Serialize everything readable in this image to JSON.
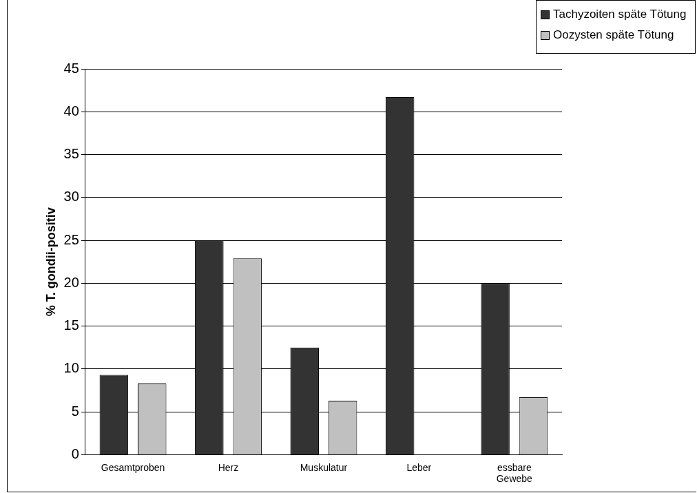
{
  "chart_data": {
    "type": "bar",
    "ylabel": "% T. gondii-positiv",
    "categories": [
      "Gesamtproben",
      "Herz",
      "Muskulatur",
      "Leber",
      "essbare Gewebe"
    ],
    "series": [
      {
        "name": "Tachyzoiten späte Tötung",
        "color": "#333333",
        "values": [
          9.3,
          25,
          12.5,
          41.7,
          20
        ]
      },
      {
        "name": "Oozysten späte Tötung",
        "color": "#c0c0c0",
        "values": [
          8.3,
          22.9,
          6.3,
          0,
          6.7
        ]
      }
    ],
    "ylim": [
      0,
      45
    ],
    "yticks": [
      0,
      5,
      10,
      15,
      20,
      25,
      30,
      35,
      40,
      45
    ],
    "grid": "y",
    "legend": "top right"
  }
}
